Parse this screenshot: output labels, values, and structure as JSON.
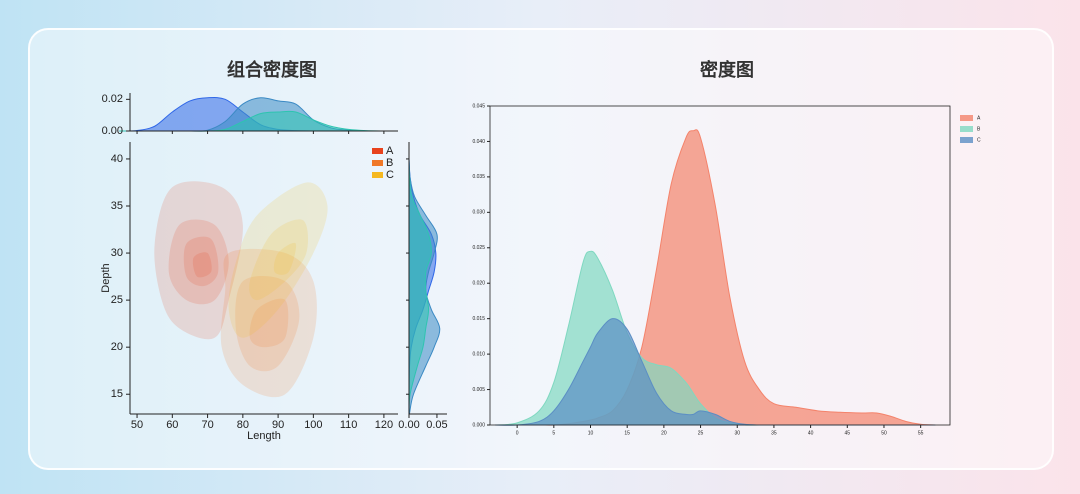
{
  "chart_data": [
    {
      "type": "jointkde",
      "title": "组合密度图",
      "xlabel": "Length",
      "ylabel": "Depth",
      "xlim": [
        48,
        124
      ],
      "ylim": [
        12.9,
        41.8
      ],
      "xticks": [
        50,
        60,
        70,
        80,
        90,
        100,
        110,
        120
      ],
      "yticks": [
        15,
        20,
        25,
        30,
        35,
        40
      ],
      "legend": "upper right",
      "contours": [
        {
          "name": "A",
          "color": "#e8421c",
          "levels": [
            {
              "x": [
                60,
                74,
                80,
                76,
                72,
                62,
                57,
                55
              ],
              "y": [
                37,
                37,
                33,
                25,
                21,
                22,
                25,
                31
              ]
            },
            {
              "x": [
                62,
                72,
                76,
                72,
                64,
                59
              ],
              "y": [
                33,
                33,
                29,
                25,
                25,
                28
              ]
            },
            {
              "x": [
                64,
                71,
                73,
                69,
                64
              ],
              "y": [
                31,
                31.5,
                28,
                26.5,
                27.5
              ]
            },
            {
              "x": [
                66,
                70,
                71,
                67
              ],
              "y": [
                29.5,
                30,
                28,
                27.5
              ]
            }
          ]
        },
        {
          "name": "B",
          "color": "#f07828",
          "levels": [
            {
              "x": [
                76,
                92,
                100,
                100,
                92,
                80,
                74,
                75
              ],
              "y": [
                30,
                30,
                27,
                21,
                15,
                16,
                20,
                26
              ]
            },
            {
              "x": [
                80,
                92,
                96,
                90,
                82,
                78
              ],
              "y": [
                27,
                27,
                23,
                18,
                18,
                22
              ]
            },
            {
              "x": [
                84,
                92,
                92,
                86,
                82
              ],
              "y": [
                24,
                25,
                21,
                20,
                21
              ]
            }
          ]
        },
        {
          "name": "C",
          "color": "#f5b820",
          "levels": [
            {
              "x": [
                84,
                98,
                104,
                100,
                90,
                80,
                76,
                78
              ],
              "y": [
                34,
                37.5,
                35,
                30,
                24,
                21,
                24,
                29
              ]
            },
            {
              "x": [
                88,
                97,
                98,
                92,
                84,
                82
              ],
              "y": [
                32,
                33.5,
                30,
                27,
                25,
                27
              ]
            },
            {
              "x": [
                90,
                95,
                93,
                89
              ],
              "y": [
                30,
                31,
                28,
                28
              ]
            }
          ]
        }
      ],
      "top_margin": {
        "x": [
          45,
          50,
          55,
          60,
          65,
          70,
          75,
          80,
          85,
          90,
          95,
          100,
          105,
          110,
          115,
          120
        ],
        "ylim": [
          0,
          0.024
        ],
        "yticks": [
          {
            "value": 0,
            "label": "0.00"
          },
          {
            "value": 0.02,
            "label": "0.02"
          }
        ],
        "series": [
          {
            "color": "#2f67e8",
            "values": [
              0,
              0.0003,
              0.003,
              0.012,
              0.019,
              0.021,
              0.02,
              0.012,
              0.004,
              0.001,
              0.0002,
              0,
              0,
              0,
              0,
              0
            ]
          },
          {
            "color": "#3b8ac4",
            "values": [
              0,
              0,
              0,
              0,
              0,
              0.0005,
              0.006,
              0.017,
              0.021,
              0.019,
              0.017,
              0.007,
              0.002,
              0.0005,
              0,
              0
            ]
          },
          {
            "color": "#2ec4b0",
            "values": [
              0,
              0,
              0,
              0,
              0,
              0,
              0.001,
              0.006,
              0.011,
              0.012,
              0.012,
              0.007,
              0.003,
              0.001,
              0.0002,
              0
            ]
          }
        ]
      },
      "right_margin": {
        "y": [
          13,
          15,
          18,
          20,
          22,
          24,
          26,
          28,
          30,
          32,
          34,
          36,
          38,
          40
        ],
        "xlim": [
          0,
          0.068
        ],
        "xticks": [
          {
            "value": 0,
            "label": "0.00"
          },
          0.05
        ],
        "series": [
          {
            "color": "#2f67e8",
            "values": [
              0,
              0,
              0.001,
              0.004,
              0.012,
              0.025,
              0.035,
              0.045,
              0.048,
              0.04,
              0.02,
              0.008,
              0.002,
              0
            ]
          },
          {
            "color": "#3b8ac4",
            "values": [
              0.001,
              0.008,
              0.03,
              0.045,
              0.055,
              0.04,
              0.03,
              0.035,
              0.045,
              0.05,
              0.03,
              0.01,
              0.002,
              0
            ]
          },
          {
            "color": "#2ec4b0",
            "values": [
              0,
              0.002,
              0.015,
              0.025,
              0.03,
              0.035,
              0.03,
              0.03,
              0.04,
              0.035,
              0.02,
              0.005,
              0.001,
              0
            ]
          }
        ]
      }
    },
    {
      "type": "density",
      "title": "密度图",
      "legend": "upper right",
      "x": [
        -3,
        0,
        3,
        5,
        7,
        9,
        10,
        11,
        13,
        15,
        17,
        19,
        21,
        23,
        24,
        25,
        27,
        29,
        31,
        33,
        35,
        38,
        41,
        44,
        47,
        49,
        51,
        53,
        55,
        57
      ],
      "xlim": [
        -3.7,
        59
      ],
      "ylim": [
        0,
        0.045
      ],
      "xticks": [
        0,
        5,
        10,
        15,
        20,
        25,
        30,
        35,
        40,
        45,
        50,
        55
      ],
      "yticks": [
        {
          "value": 0,
          "label": "0.000"
        },
        {
          "value": 0.005,
          "label": "0.005"
        },
        {
          "value": 0.01,
          "label": "0.010"
        },
        {
          "value": 0.015,
          "label": "0.015"
        },
        {
          "value": 0.02,
          "label": "0.020"
        },
        {
          "value": 0.025,
          "label": "0.025"
        },
        {
          "value": 0.03,
          "label": "0.030"
        },
        {
          "value": 0.035,
          "label": "0.035"
        },
        {
          "value": 0.04,
          "label": "0.040"
        },
        {
          "value": 0.045,
          "label": "0.045"
        }
      ],
      "series": [
        {
          "name": "A",
          "color": "#f4836b",
          "values": [
            0,
            0,
            0,
            0,
            0.0002,
            0.0005,
            0.0007,
            0.001,
            0.002,
            0.005,
            0.011,
            0.022,
            0.034,
            0.0405,
            0.0415,
            0.0405,
            0.031,
            0.018,
            0.009,
            0.005,
            0.003,
            0.0025,
            0.002,
            0.0018,
            0.0017,
            0.0017,
            0.0012,
            0.0005,
            0.0001,
            0
          ]
        },
        {
          "name": "B",
          "color": "#7fd8c0",
          "values": [
            0,
            0.0003,
            0.002,
            0.006,
            0.014,
            0.023,
            0.0245,
            0.0235,
            0.019,
            0.013,
            0.0095,
            0.0085,
            0.008,
            0.006,
            0.0045,
            0.003,
            0.001,
            0.0003,
            0,
            0,
            0,
            0,
            0,
            0,
            0,
            0,
            0,
            0,
            0,
            0
          ]
        },
        {
          "name": "C",
          "color": "#5b8ec4",
          "values": [
            0,
            0,
            0.0005,
            0.002,
            0.005,
            0.009,
            0.011,
            0.013,
            0.015,
            0.0135,
            0.009,
            0.0045,
            0.002,
            0.0015,
            0.0015,
            0.002,
            0.0015,
            0.0005,
            0.0001,
            0,
            0,
            0,
            0,
            0,
            0,
            0,
            0,
            0,
            0,
            0
          ]
        }
      ]
    }
  ]
}
